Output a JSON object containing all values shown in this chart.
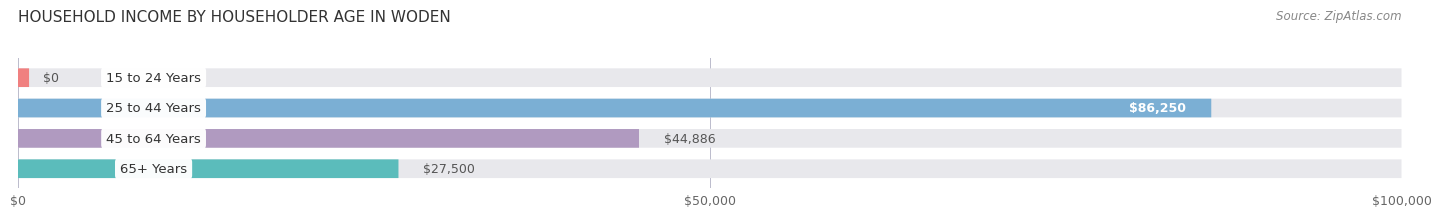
{
  "title": "HOUSEHOLD INCOME BY HOUSEHOLDER AGE IN WODEN",
  "source": "Source: ZipAtlas.com",
  "categories": [
    "15 to 24 Years",
    "25 to 44 Years",
    "45 to 64 Years",
    "65+ Years"
  ],
  "values": [
    0,
    86250,
    44886,
    27500
  ],
  "bar_colors": [
    "#f08080",
    "#7bafd4",
    "#b09ac0",
    "#5bbcbb"
  ],
  "value_labels": [
    "$0",
    "$86,250",
    "$44,886",
    "$27,500"
  ],
  "xlim": [
    0,
    100000
  ],
  "xticks": [
    0,
    50000,
    100000
  ],
  "xtick_labels": [
    "$0",
    "$50,000",
    "$100,000"
  ],
  "bar_bg_color": "#e8e8ec",
  "bar_height": 0.6,
  "title_fontsize": 11,
  "label_fontsize": 9.5,
  "value_fontsize": 9,
  "source_fontsize": 8.5
}
